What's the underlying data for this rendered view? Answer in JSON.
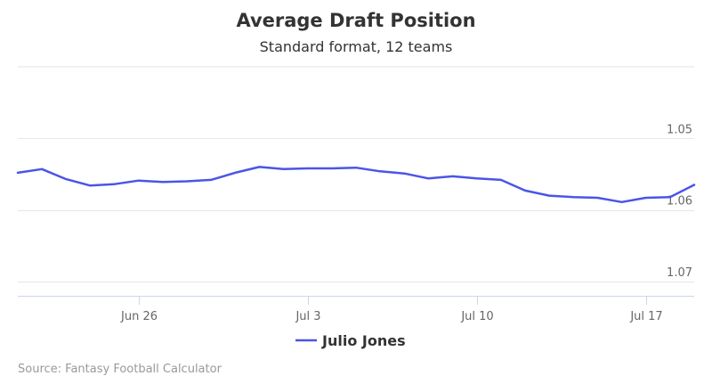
{
  "chart_data": {
    "type": "line",
    "title": "Average Draft Position",
    "subtitle": "Standard format, 12 teams",
    "credits": "Source: Fantasy Football Calculator",
    "xlabel": "",
    "ylabel": "",
    "y_reversed": true,
    "ylim": [
      1.04,
      1.072
    ],
    "y_ticks": [
      1.05,
      1.06,
      1.07
    ],
    "y_tick_labels": [
      "1.05",
      "1.06",
      "1.07"
    ],
    "y_axis_position": "right",
    "grid": true,
    "x_range": [
      "2017-06-21",
      "2017-07-19"
    ],
    "x_ticks": [
      "2017-06-26",
      "2017-07-03",
      "2017-07-10",
      "2017-07-17"
    ],
    "x_tick_labels": [
      "Jun 26",
      "Jul 3",
      "Jul 10",
      "Jul 17"
    ],
    "legend_position": "bottom-center",
    "series": [
      {
        "name": "Julio Jones",
        "color": "#4b55e6",
        "x": [
          "2017-06-21",
          "2017-06-22",
          "2017-06-23",
          "2017-06-24",
          "2017-06-25",
          "2017-06-26",
          "2017-06-27",
          "2017-06-28",
          "2017-06-29",
          "2017-06-30",
          "2017-07-01",
          "2017-07-02",
          "2017-07-03",
          "2017-07-04",
          "2017-07-05",
          "2017-07-06",
          "2017-07-07",
          "2017-07-08",
          "2017-07-09",
          "2017-07-10",
          "2017-07-11",
          "2017-07-12",
          "2017-07-13",
          "2017-07-14",
          "2017-07-15",
          "2017-07-16",
          "2017-07-17",
          "2017-07-18",
          "2017-07-19"
        ],
        "values": [
          1.0548,
          1.0543,
          1.0557,
          1.0566,
          1.0564,
          1.0559,
          1.0561,
          1.056,
          1.0558,
          1.0548,
          1.054,
          1.0543,
          1.0542,
          1.0542,
          1.0541,
          1.0546,
          1.0549,
          1.0556,
          1.0553,
          1.0556,
          1.0558,
          1.0573,
          1.058,
          1.0582,
          1.0583,
          1.0589,
          1.0583,
          1.0582,
          1.0565
        ]
      }
    ]
  }
}
